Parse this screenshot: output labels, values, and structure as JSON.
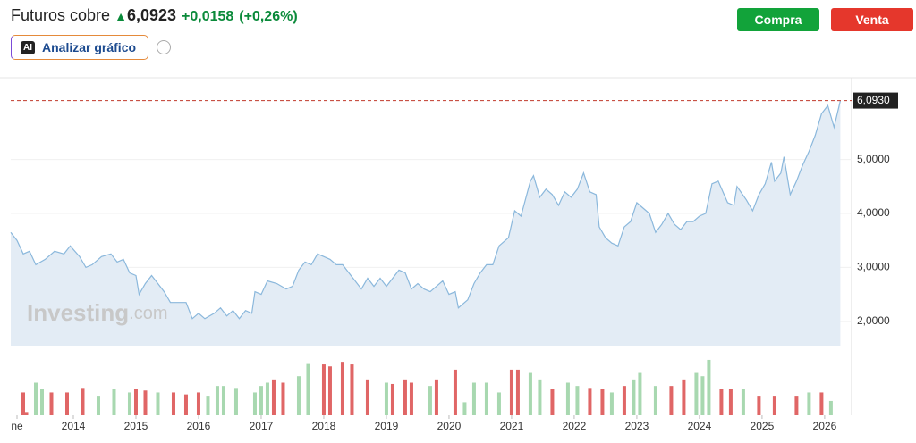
{
  "header": {
    "title": "Futuros cobre",
    "price": "6,0923",
    "change": "+0,0158",
    "change_pct": "(+0,26%)",
    "buy": "Compra",
    "sell": "Venta",
    "ai_icon": "AI",
    "ai_button": "Analizar gráfico",
    "watermark": "Investing",
    "watermark_suffix": ".com"
  },
  "chart_data": [
    {
      "type": "area",
      "color": "#8bb8dc",
      "fill": "#e3ecf5",
      "xlim": [
        2013.0,
        2026.43
      ],
      "ylim": [
        1.55,
        6.5
      ],
      "yticks": [
        {
          "value": 2,
          "label": "2,0000"
        },
        {
          "value": 3,
          "label": "3,0000"
        },
        {
          "value": 4,
          "label": "4,0000"
        },
        {
          "value": 5,
          "label": "5,0000"
        }
      ],
      "grid": true,
      "reference_line": {
        "value": 6.093,
        "label": "6,0930",
        "color": "#c0392b"
      },
      "x": [
        2013.0,
        2013.1,
        2013.2,
        2013.3,
        2013.4,
        2013.55,
        2013.7,
        2013.85,
        2013.95,
        2014.1,
        2014.2,
        2014.3,
        2014.45,
        2014.6,
        2014.7,
        2014.8,
        2014.9,
        2015.0,
        2015.05,
        2015.15,
        2015.25,
        2015.35,
        2015.45,
        2015.55,
        2015.7,
        2015.8,
        2015.9,
        2016.0,
        2016.1,
        2016.25,
        2016.35,
        2016.45,
        2016.55,
        2016.65,
        2016.75,
        2016.85,
        2016.9,
        2017.0,
        2017.1,
        2017.25,
        2017.4,
        2017.5,
        2017.6,
        2017.7,
        2017.8,
        2017.9,
        2018.0,
        2018.1,
        2018.2,
        2018.3,
        2018.4,
        2018.5,
        2018.6,
        2018.7,
        2018.8,
        2018.9,
        2019.0,
        2019.1,
        2019.2,
        2019.3,
        2019.4,
        2019.5,
        2019.6,
        2019.7,
        2019.8,
        2019.9,
        2020.0,
        2020.1,
        2020.15,
        2020.3,
        2020.4,
        2020.5,
        2020.6,
        2020.7,
        2020.8,
        2020.95,
        2021.05,
        2021.15,
        2021.3,
        2021.35,
        2021.45,
        2021.55,
        2021.65,
        2021.75,
        2021.85,
        2021.95,
        2022.05,
        2022.15,
        2022.25,
        2022.35,
        2022.4,
        2022.5,
        2022.6,
        2022.7,
        2022.8,
        2022.9,
        2023.0,
        2023.1,
        2023.2,
        2023.3,
        2023.4,
        2023.5,
        2023.6,
        2023.7,
        2023.8,
        2023.9,
        2024.0,
        2024.1,
        2024.2,
        2024.3,
        2024.45,
        2024.55,
        2024.6,
        2024.75,
        2024.85,
        2024.95,
        2025.05,
        2025.15,
        2025.2,
        2025.3,
        2025.35,
        2025.45,
        2025.55,
        2025.65,
        2025.75,
        2025.85,
        2025.95,
        2026.05,
        2026.15,
        2026.25
      ],
      "values": [
        3.65,
        3.5,
        3.25,
        3.3,
        3.05,
        3.15,
        3.3,
        3.25,
        3.4,
        3.2,
        3.0,
        3.05,
        3.2,
        3.25,
        3.1,
        3.15,
        2.9,
        2.85,
        2.5,
        2.7,
        2.85,
        2.7,
        2.55,
        2.35,
        2.35,
        2.35,
        2.05,
        2.15,
        2.05,
        2.15,
        2.25,
        2.1,
        2.2,
        2.05,
        2.2,
        2.15,
        2.55,
        2.5,
        2.75,
        2.7,
        2.6,
        2.65,
        2.95,
        3.1,
        3.05,
        3.25,
        3.2,
        3.15,
        3.05,
        3.05,
        2.9,
        2.75,
        2.6,
        2.8,
        2.65,
        2.8,
        2.65,
        2.8,
        2.95,
        2.9,
        2.6,
        2.7,
        2.6,
        2.55,
        2.65,
        2.75,
        2.5,
        2.55,
        2.25,
        2.4,
        2.7,
        2.9,
        3.05,
        3.05,
        3.4,
        3.55,
        4.05,
        3.95,
        4.6,
        4.7,
        4.3,
        4.45,
        4.35,
        4.15,
        4.4,
        4.3,
        4.45,
        4.75,
        4.4,
        4.35,
        3.75,
        3.55,
        3.45,
        3.4,
        3.75,
        3.85,
        4.2,
        4.1,
        4.0,
        3.65,
        3.8,
        4.0,
        3.8,
        3.7,
        3.85,
        3.85,
        3.95,
        4.0,
        4.55,
        4.6,
        4.2,
        4.15,
        4.5,
        4.25,
        4.05,
        4.35,
        4.55,
        4.95,
        4.6,
        4.75,
        5.05,
        4.35,
        4.6,
        4.9,
        5.15,
        5.45,
        5.85,
        6.0,
        5.6,
        6.09
      ]
    },
    {
      "type": "bar",
      "xlim": [
        2013.0,
        2026.43
      ],
      "ylim": [
        0,
        100
      ],
      "xticks": [
        {
          "value": 2013.1,
          "label": "ne"
        },
        2014,
        2015,
        2016,
        2017,
        2018,
        2019,
        2020,
        2021,
        2022,
        2023,
        2024,
        2025,
        2026
      ],
      "x": [
        2013.2,
        2013.25,
        2013.4,
        2013.5,
        2013.65,
        2013.9,
        2014.15,
        2014.4,
        2014.65,
        2014.9,
        2015.0,
        2015.15,
        2015.35,
        2015.6,
        2015.8,
        2016.0,
        2016.15,
        2016.3,
        2016.4,
        2016.6,
        2016.9,
        2017.0,
        2017.1,
        2017.2,
        2017.35,
        2017.6,
        2017.75,
        2018.0,
        2018.1,
        2018.3,
        2018.45,
        2018.7,
        2019.0,
        2019.1,
        2019.3,
        2019.4,
        2019.7,
        2019.8,
        2020.1,
        2020.25,
        2020.4,
        2020.6,
        2020.8,
        2021.0,
        2021.1,
        2021.3,
        2021.45,
        2021.65,
        2021.9,
        2022.05,
        2022.25,
        2022.45,
        2022.6,
        2022.8,
        2022.95,
        2023.05,
        2023.3,
        2023.55,
        2023.75,
        2023.95,
        2024.05,
        2024.15,
        2024.35,
        2024.5,
        2024.7,
        2024.95,
        2025.2,
        2025.55,
        2025.75,
        2025.95,
        2026.1
      ],
      "values": [
        35,
        5,
        50,
        40,
        35,
        35,
        42,
        30,
        40,
        35,
        40,
        38,
        35,
        35,
        32,
        35,
        30,
        45,
        45,
        42,
        35,
        45,
        50,
        55,
        50,
        60,
        80,
        78,
        75,
        82,
        78,
        55,
        50,
        48,
        55,
        50,
        45,
        55,
        70,
        20,
        50,
        50,
        35,
        70,
        70,
        65,
        55,
        40,
        50,
        45,
        42,
        40,
        35,
        45,
        55,
        65,
        45,
        45,
        55,
        65,
        60,
        85,
        40,
        40,
        40,
        30,
        30,
        30,
        35,
        35,
        22
      ],
      "colors": [
        "#e06666",
        "#e06666",
        "#a8d8b0",
        "#a8d8b0",
        "#e06666",
        "#e06666",
        "#e06666",
        "#a8d8b0",
        "#a8d8b0",
        "#a8d8b0",
        "#e06666",
        "#e06666",
        "#a8d8b0",
        "#e06666",
        "#e06666",
        "#e06666",
        "#a8d8b0",
        "#a8d8b0",
        "#a8d8b0",
        "#a8d8b0",
        "#a8d8b0",
        "#a8d8b0",
        "#a8d8b0",
        "#e06666",
        "#e06666",
        "#a8d8b0",
        "#a8d8b0",
        "#e06666",
        "#e06666",
        "#e06666",
        "#e06666",
        "#e06666",
        "#a8d8b0",
        "#e06666",
        "#e06666",
        "#e06666",
        "#a8d8b0",
        "#e06666",
        "#e06666",
        "#a8d8b0",
        "#a8d8b0",
        "#a8d8b0",
        "#a8d8b0",
        "#e06666",
        "#e06666",
        "#a8d8b0",
        "#a8d8b0",
        "#e06666",
        "#a8d8b0",
        "#a8d8b0",
        "#e06666",
        "#e06666",
        "#a8d8b0",
        "#e06666",
        "#a8d8b0",
        "#a8d8b0",
        "#a8d8b0",
        "#e06666",
        "#e06666",
        "#a8d8b0",
        "#a8d8b0",
        "#a8d8b0",
        "#e06666",
        "#e06666",
        "#a8d8b0",
        "#e06666",
        "#e06666",
        "#e06666",
        "#a8d8b0",
        "#e06666",
        "#a8d8b0"
      ]
    }
  ]
}
